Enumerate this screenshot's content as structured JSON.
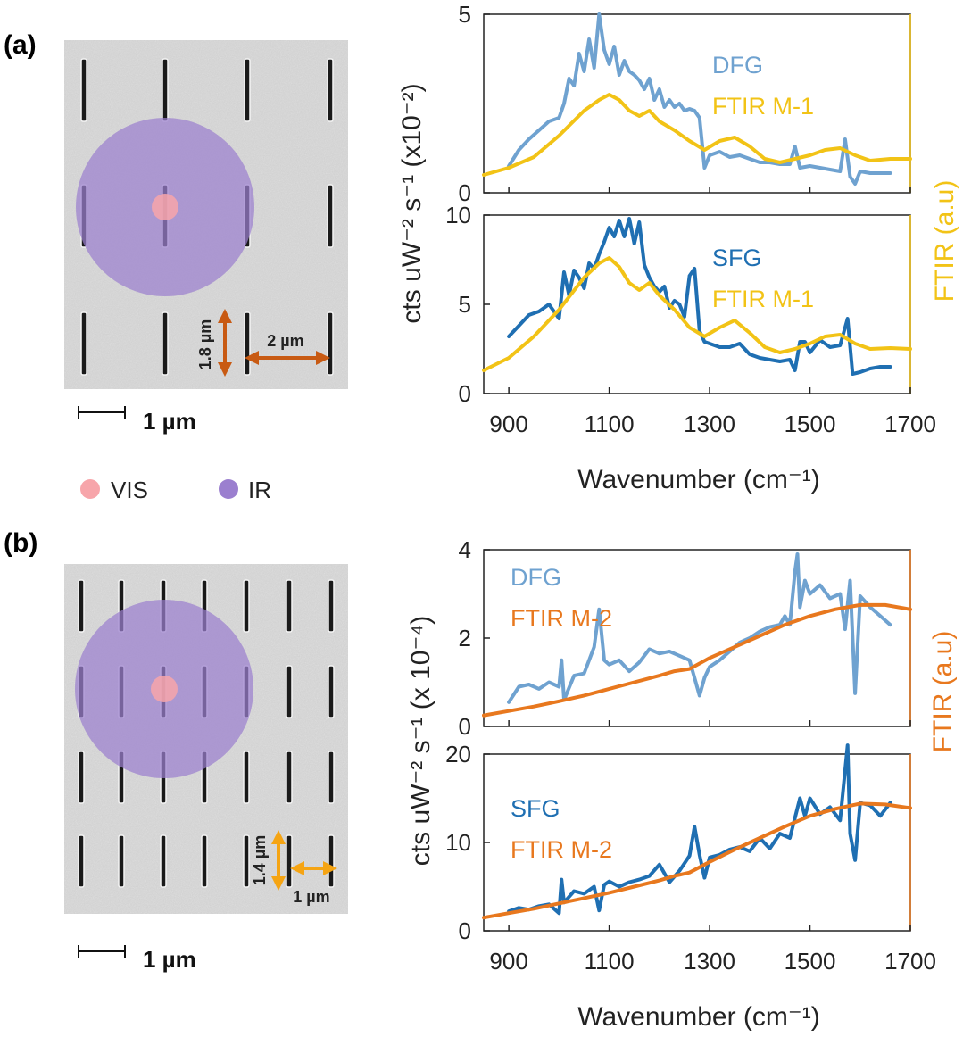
{
  "colors": {
    "dfg": "#6fa2d0",
    "sfg": "#1f6fb2",
    "ftir_m1": "#f2c316",
    "ftir_m2": "#e8781e",
    "vis": "#f7a5aa",
    "ir": "#9b7fcf",
    "arrow_a": "#c85a13",
    "arrow_b": "#f5a413"
  },
  "panel_a": {
    "label": "(a)",
    "sem": {
      "scale_label": "1 µm",
      "dim_vertical": "1.8 µm",
      "dim_horizontal": "2 µm"
    },
    "laser_key": {
      "vis_label": "VIS",
      "ir_label": "IR"
    },
    "ylabel": "cts uW⁻² s⁻¹ (x10⁻²)",
    "right_ylabel": "FTIR (a.u)"
  },
  "panel_b": {
    "label": "(b)",
    "sem": {
      "scale_label": "1 µm",
      "dim_vertical": "1.4 µm",
      "dim_horizontal": "1 µm"
    },
    "ylabel": "cts uW⁻² s⁻¹ (x 10⁻⁴)",
    "right_ylabel": "FTIR (a.u)"
  },
  "chart_data": [
    {
      "id": "a-top",
      "type": "line",
      "xlim": [
        850,
        1700
      ],
      "ylim": [
        0,
        5
      ],
      "yticks": [
        0,
        5
      ],
      "legend": [
        "DFG",
        "FTIR M-1"
      ],
      "series": [
        {
          "name": "DFG",
          "color": "#6fa2d0",
          "x": [
            900,
            920,
            940,
            960,
            980,
            1000,
            1010,
            1020,
            1030,
            1040,
            1050,
            1060,
            1070,
            1080,
            1090,
            1100,
            1110,
            1120,
            1130,
            1140,
            1150,
            1160,
            1170,
            1180,
            1190,
            1200,
            1210,
            1220,
            1230,
            1240,
            1250,
            1260,
            1270,
            1280,
            1290,
            1300,
            1320,
            1340,
            1360,
            1380,
            1400,
            1420,
            1440,
            1460,
            1470,
            1480,
            1500,
            1520,
            1540,
            1560,
            1570,
            1580,
            1590,
            1600,
            1620,
            1640,
            1660
          ],
          "y": [
            0.75,
            1.2,
            1.5,
            1.75,
            2.0,
            2.1,
            2.5,
            3.2,
            3.0,
            3.9,
            3.4,
            4.3,
            3.5,
            5.0,
            4.0,
            3.6,
            4.1,
            3.3,
            3.7,
            3.4,
            3.3,
            3.15,
            2.9,
            3.2,
            2.6,
            2.9,
            2.4,
            2.6,
            2.4,
            2.5,
            2.3,
            2.35,
            2.3,
            2.1,
            0.7,
            1.05,
            1.15,
            1.0,
            1.05,
            0.95,
            0.85,
            0.85,
            0.8,
            0.8,
            1.3,
            0.7,
            0.75,
            0.7,
            0.65,
            0.6,
            1.5,
            0.45,
            0.25,
            0.6,
            0.55,
            0.55,
            0.55
          ]
        },
        {
          "name": "FTIR M-1",
          "color": "#f2c316",
          "x": [
            850,
            900,
            950,
            1000,
            1050,
            1080,
            1100,
            1120,
            1140,
            1160,
            1180,
            1200,
            1230,
            1260,
            1290,
            1320,
            1350,
            1380,
            1410,
            1440,
            1470,
            1500,
            1530,
            1560,
            1590,
            1620,
            1660,
            1700
          ],
          "y": [
            0.5,
            0.7,
            1.0,
            1.6,
            2.3,
            2.6,
            2.75,
            2.6,
            2.3,
            2.15,
            2.3,
            2.0,
            1.75,
            1.45,
            1.2,
            1.45,
            1.55,
            1.3,
            0.95,
            0.85,
            0.95,
            1.05,
            1.2,
            1.25,
            1.05,
            0.9,
            0.95,
            0.95
          ]
        }
      ]
    },
    {
      "id": "a-bottom",
      "type": "line",
      "xlim": [
        850,
        1700
      ],
      "ylim": [
        0,
        10
      ],
      "yticks": [
        0,
        5,
        10
      ],
      "xticks": [
        900,
        1100,
        1300,
        1500,
        1700
      ],
      "xlabel": "Wavenumber (cm⁻¹)",
      "legend": [
        "SFG",
        "FTIR M-1"
      ],
      "series": [
        {
          "name": "SFG",
          "color": "#1f6fb2",
          "x": [
            900,
            920,
            940,
            960,
            980,
            1000,
            1010,
            1020,
            1030,
            1040,
            1050,
            1060,
            1070,
            1080,
            1090,
            1100,
            1110,
            1120,
            1130,
            1140,
            1150,
            1160,
            1170,
            1180,
            1190,
            1200,
            1210,
            1220,
            1230,
            1240,
            1250,
            1260,
            1270,
            1280,
            1290,
            1300,
            1320,
            1340,
            1360,
            1380,
            1400,
            1420,
            1440,
            1460,
            1470,
            1480,
            1490,
            1500,
            1520,
            1540,
            1560,
            1575,
            1585,
            1600,
            1620,
            1640,
            1660
          ],
          "y": [
            3.2,
            3.8,
            4.4,
            4.6,
            5.0,
            4.2,
            6.8,
            5.5,
            6.9,
            6.5,
            5.9,
            7.3,
            7.0,
            7.8,
            8.5,
            9.3,
            8.8,
            9.7,
            8.8,
            9.8,
            8.4,
            9.6,
            7.2,
            6.5,
            6.0,
            5.7,
            6.0,
            4.8,
            5.2,
            5.0,
            4.3,
            6.6,
            7.0,
            3.5,
            2.9,
            2.8,
            2.6,
            2.6,
            2.8,
            2.2,
            2.0,
            1.9,
            1.8,
            1.9,
            1.3,
            2.9,
            2.9,
            2.3,
            3.0,
            2.6,
            2.7,
            4.2,
            1.1,
            1.2,
            1.4,
            1.5,
            1.5
          ]
        },
        {
          "name": "FTIR M-1",
          "color": "#f2c316",
          "x": [
            850,
            900,
            950,
            1000,
            1050,
            1080,
            1100,
            1120,
            1140,
            1160,
            1180,
            1200,
            1230,
            1260,
            1290,
            1320,
            1350,
            1380,
            1410,
            1440,
            1470,
            1500,
            1530,
            1560,
            1590,
            1620,
            1660,
            1700
          ],
          "y": [
            1.3,
            2.0,
            3.2,
            4.7,
            6.5,
            7.3,
            7.6,
            7.1,
            6.2,
            5.8,
            6.2,
            5.5,
            4.7,
            3.7,
            3.2,
            3.7,
            4.1,
            3.4,
            2.6,
            2.3,
            2.5,
            2.8,
            3.2,
            3.3,
            2.8,
            2.5,
            2.55,
            2.5
          ]
        }
      ]
    },
    {
      "id": "b-top",
      "type": "line",
      "xlim": [
        850,
        1700
      ],
      "ylim": [
        0,
        4
      ],
      "yticks": [
        0,
        2,
        4
      ],
      "legend": [
        "DFG",
        "FTIR M-2"
      ],
      "series": [
        {
          "name": "DFG",
          "color": "#6fa2d0",
          "x": [
            900,
            920,
            940,
            960,
            980,
            1000,
            1005,
            1010,
            1030,
            1050,
            1070,
            1080,
            1090,
            1100,
            1120,
            1140,
            1160,
            1180,
            1200,
            1220,
            1240,
            1260,
            1280,
            1290,
            1300,
            1320,
            1340,
            1360,
            1380,
            1400,
            1420,
            1440,
            1450,
            1460,
            1470,
            1475,
            1480,
            1490,
            1500,
            1520,
            1540,
            1560,
            1570,
            1580,
            1590,
            1600,
            1620,
            1640,
            1660
          ],
          "y": [
            0.55,
            0.9,
            0.95,
            0.85,
            1.0,
            0.9,
            1.5,
            0.6,
            1.15,
            1.2,
            1.8,
            2.65,
            1.5,
            1.4,
            1.5,
            1.25,
            1.45,
            1.75,
            1.65,
            1.7,
            1.6,
            1.5,
            0.7,
            1.1,
            1.35,
            1.5,
            1.7,
            1.9,
            2.0,
            2.15,
            2.25,
            2.3,
            2.5,
            2.3,
            3.5,
            3.9,
            2.7,
            3.3,
            3.0,
            3.2,
            2.9,
            3.0,
            2.2,
            3.3,
            0.75,
            2.95,
            2.7,
            2.5,
            2.3
          ]
        },
        {
          "name": "FTIR M-2",
          "color": "#e8781e",
          "x": [
            850,
            900,
            950,
            1000,
            1050,
            1100,
            1150,
            1200,
            1230,
            1260,
            1300,
            1350,
            1400,
            1450,
            1500,
            1550,
            1600,
            1650,
            1700
          ],
          "y": [
            0.25,
            0.35,
            0.45,
            0.57,
            0.7,
            0.85,
            1.0,
            1.15,
            1.25,
            1.3,
            1.55,
            1.8,
            2.05,
            2.3,
            2.5,
            2.65,
            2.75,
            2.75,
            2.65
          ]
        }
      ]
    },
    {
      "id": "b-bottom",
      "type": "line",
      "xlim": [
        850,
        1700
      ],
      "ylim": [
        0,
        20
      ],
      "yticks": [
        0,
        10,
        20
      ],
      "xticks": [
        900,
        1100,
        1300,
        1500,
        1700
      ],
      "xlabel": "Wavenumber (cm⁻¹)",
      "legend": [
        "SFG",
        "FTIR M-2"
      ],
      "series": [
        {
          "name": "SFG",
          "color": "#1f6fb2",
          "x": [
            900,
            920,
            940,
            960,
            980,
            1000,
            1005,
            1010,
            1030,
            1050,
            1070,
            1080,
            1090,
            1100,
            1120,
            1140,
            1160,
            1180,
            1200,
            1220,
            1240,
            1260,
            1270,
            1280,
            1290,
            1300,
            1320,
            1340,
            1360,
            1380,
            1400,
            1420,
            1440,
            1460,
            1480,
            1490,
            1500,
            1520,
            1540,
            1560,
            1575,
            1580,
            1590,
            1600,
            1620,
            1640,
            1660
          ],
          "y": [
            2.2,
            2.6,
            2.4,
            2.8,
            3.0,
            2.0,
            5.8,
            3.2,
            4.5,
            4.2,
            5.0,
            2.3,
            5.2,
            5.6,
            5.0,
            5.5,
            5.8,
            6.2,
            7.5,
            5.5,
            6.8,
            8.5,
            11.8,
            8.6,
            6.0,
            8.3,
            8.6,
            9.2,
            9.5,
            9.0,
            10.5,
            9.3,
            11.0,
            10.5,
            15.0,
            13.0,
            15.0,
            13.2,
            14.0,
            12.5,
            21.0,
            11.0,
            8.0,
            14.5,
            14.2,
            13.0,
            14.5
          ]
        },
        {
          "name": "FTIR M-2",
          "color": "#e8781e",
          "x": [
            850,
            900,
            950,
            1000,
            1050,
            1100,
            1150,
            1200,
            1230,
            1260,
            1300,
            1350,
            1400,
            1450,
            1500,
            1550,
            1600,
            1650,
            1700
          ],
          "y": [
            1.5,
            2.0,
            2.5,
            3.1,
            3.7,
            4.3,
            5.0,
            5.7,
            6.2,
            6.6,
            7.8,
            9.2,
            10.5,
            11.8,
            13.0,
            13.8,
            14.4,
            14.3,
            13.9
          ]
        }
      ]
    }
  ]
}
